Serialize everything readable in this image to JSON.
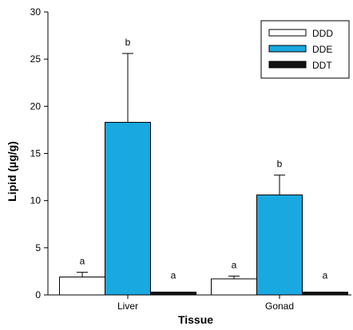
{
  "chart_data": {
    "type": "bar",
    "xlabel": "Tissue",
    "ylabel": "Lipid (µg/g)",
    "ylim": [
      0,
      30
    ],
    "yticks": [
      0,
      5,
      10,
      15,
      20,
      25,
      30
    ],
    "categories": [
      "Liver",
      "Gonad"
    ],
    "series": [
      {
        "name": "DDD",
        "color": "#ffffff",
        "values": [
          1.9,
          1.7
        ],
        "errors": [
          0.5,
          0.3
        ],
        "sig": [
          "a",
          "a"
        ]
      },
      {
        "name": "DDE",
        "color": "#1aa8e0",
        "values": [
          18.3,
          10.6
        ],
        "errors": [
          7.3,
          2.1
        ],
        "sig": [
          "b",
          "b"
        ]
      },
      {
        "name": "DDT",
        "color": "#111111",
        "values": [
          0.3,
          0.3
        ],
        "errors": [
          0,
          0
        ],
        "sig": [
          "a",
          "a"
        ]
      }
    ],
    "legend_position": "top-right",
    "grid": false
  }
}
